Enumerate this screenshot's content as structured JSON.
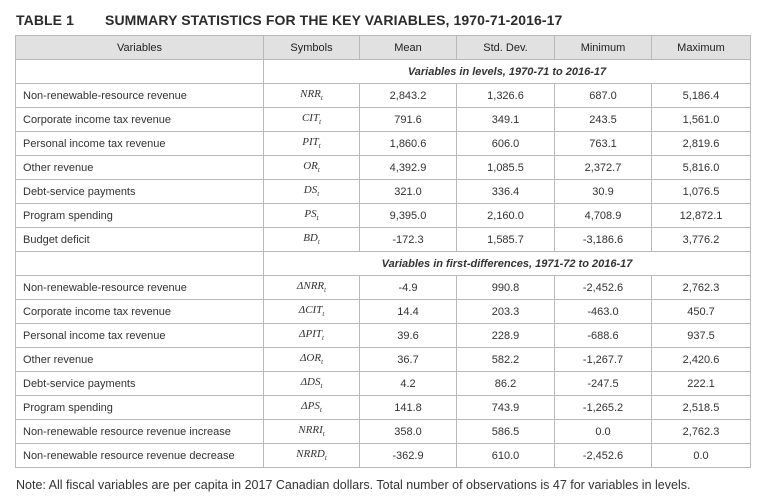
{
  "table_number": "TABLE 1",
  "title": "SUMMARY STATISTICS FOR THE KEY VARIABLES, 1970-71-2016-17",
  "headers": [
    "Variables",
    "Symbols",
    "Mean",
    "Std. Dev.",
    "Minimum",
    "Maximum"
  ],
  "section1_label": "Variables in levels, 1970-71 to 2016-17",
  "section2_label": "Variables in first-differences, 1971-72 to 2016-17",
  "levels": [
    {
      "name": "Non-renewable-resource revenue",
      "sym": "NRR",
      "sub": "t",
      "mean": "2,843.2",
      "sd": "1,326.6",
      "min": "687.0",
      "max": "5,186.4"
    },
    {
      "name": "Corporate income tax revenue",
      "sym": "CIT",
      "sub": "t",
      "mean": "791.6",
      "sd": "349.1",
      "min": "243.5",
      "max": "1,561.0"
    },
    {
      "name": "Personal income tax revenue",
      "sym": "PIT",
      "sub": "t",
      "mean": "1,860.6",
      "sd": "606.0",
      "min": "763.1",
      "max": "2,819.6"
    },
    {
      "name": "Other revenue",
      "sym": "OR",
      "sub": "t",
      "mean": "4,392.9",
      "sd": "1,085.5",
      "min": "2,372.7",
      "max": "5,816.0"
    },
    {
      "name": "Debt-service payments",
      "sym": "DS",
      "sub": "t",
      "mean": "321.0",
      "sd": "336.4",
      "min": "30.9",
      "max": "1,076.5"
    },
    {
      "name": "Program spending",
      "sym": "PS",
      "sub": "t",
      "mean": "9,395.0",
      "sd": "2,160.0",
      "min": "4,708.9",
      "max": "12,872.1"
    },
    {
      "name": "Budget deficit",
      "sym": "BD",
      "sub": "t",
      "mean": "-172.3",
      "sd": "1,585.7",
      "min": "-3,186.6",
      "max": "3,776.2"
    }
  ],
  "differences": [
    {
      "name": "Non-renewable-resource revenue",
      "sym": "ΔNRR",
      "sub": "t",
      "mean": "-4.9",
      "sd": "990.8",
      "min": "-2,452.6",
      "max": "2,762.3"
    },
    {
      "name": "Corporate income tax revenue",
      "sym": "ΔCIT",
      "sub": "t",
      "mean": "14.4",
      "sd": "203.3",
      "min": "-463.0",
      "max": "450.7"
    },
    {
      "name": "Personal income tax revenue",
      "sym": "ΔPIT",
      "sub": "t",
      "mean": "39.6",
      "sd": "228.9",
      "min": "-688.6",
      "max": "937.5"
    },
    {
      "name": "Other revenue",
      "sym": "ΔOR",
      "sub": "t",
      "mean": "36.7",
      "sd": "582.2",
      "min": "-1,267.7",
      "max": "2,420.6"
    },
    {
      "name": "Debt-service payments",
      "sym": "ΔDS",
      "sub": "t",
      "mean": "4.2",
      "sd": "86.2",
      "min": "-247.5",
      "max": "222.1"
    },
    {
      "name": "Program spending",
      "sym": "ΔPS",
      "sub": "t",
      "mean": "141.8",
      "sd": "743.9",
      "min": "-1,265.2",
      "max": "2,518.5"
    },
    {
      "name": "Non-renewable resource revenue increase",
      "sym": "NRRI",
      "sub": "t",
      "mean": "358.0",
      "sd": "586.5",
      "min": "0.0",
      "max": "2,762.3"
    },
    {
      "name": "Non-renewable resource revenue decrease",
      "sym": "NRRD",
      "sub": "t",
      "mean": "-362.9",
      "sd": "610.0",
      "min": "-2,452.6",
      "max": "0.0"
    }
  ],
  "note": "Note: All fiscal variables are per capita in 2017 Canadian dollars. Total number of observations is 47 for variables in levels."
}
